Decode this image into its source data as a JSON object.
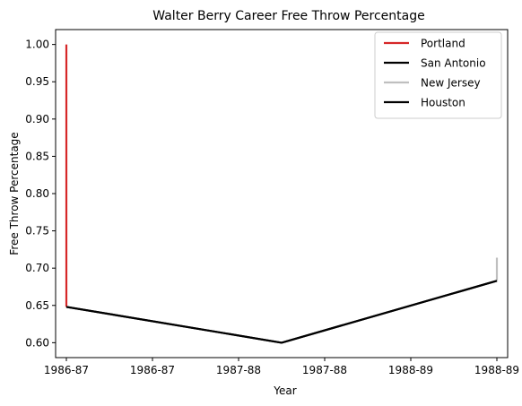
{
  "chart_data": {
    "type": "line",
    "title": "Walter Berry  Career Free Throw Percentage",
    "xlabel": "Year",
    "ylabel": "Free Throw Percentage",
    "x_tick_labels": [
      "1986-87",
      "1986-87",
      "1987-88",
      "1987-88",
      "1988-89",
      "1988-89"
    ],
    "xlim": [
      -0.05,
      2.05
    ],
    "ylim": [
      0.58,
      1.02
    ],
    "y_ticks": [
      0.6,
      0.65,
      0.7,
      0.75,
      0.8,
      0.85,
      0.9,
      0.95,
      1.0
    ],
    "y_tick_labels": [
      "0.60",
      "0.65",
      "0.70",
      "0.75",
      "0.80",
      "0.85",
      "0.90",
      "0.95",
      "1.00"
    ],
    "grid": false,
    "legend_position": "top-right",
    "series": [
      {
        "name": "Portland",
        "color": "#d62728",
        "points": [
          [
            0,
            0.648
          ],
          [
            0,
            1.0
          ]
        ]
      },
      {
        "name": "San Antonio",
        "color": "#000000",
        "points": [
          [
            0,
            0.648
          ],
          [
            1,
            0.6
          ],
          [
            2,
            0.683
          ]
        ]
      },
      {
        "name": "New Jersey",
        "color": "#bfbfbf",
        "points": [
          [
            2,
            0.683
          ],
          [
            2,
            0.714
          ]
        ]
      },
      {
        "name": "Houston",
        "color": "#000000",
        "points": [
          [
            0,
            0.648
          ],
          [
            1,
            0.6
          ],
          [
            2,
            0.683
          ]
        ]
      }
    ]
  }
}
